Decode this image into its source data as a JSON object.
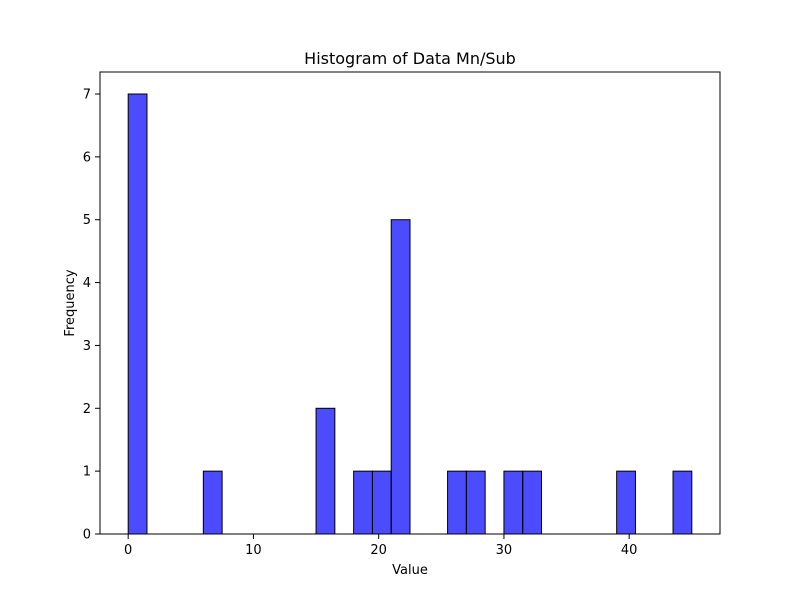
{
  "chart_data": {
    "type": "bar",
    "title": "Histogram of Data Mn/Sub",
    "xlabel": "Value",
    "ylabel": "Frequency",
    "xlim": [
      -2.25,
      47.25
    ],
    "ylim": [
      0,
      7.35
    ],
    "xticks": [
      0,
      10,
      20,
      30,
      40
    ],
    "yticks": [
      0,
      1,
      2,
      3,
      4,
      5,
      6,
      7
    ],
    "grid": false,
    "bar_color": "#0000ff",
    "bar_alpha": 0.7,
    "edge_color": "#000000",
    "bins": [
      {
        "x0": 0.0,
        "x1": 1.5,
        "count": 7
      },
      {
        "x0": 6.0,
        "x1": 7.5,
        "count": 1
      },
      {
        "x0": 15.0,
        "x1": 16.5,
        "count": 2
      },
      {
        "x0": 18.0,
        "x1": 19.5,
        "count": 1
      },
      {
        "x0": 19.5,
        "x1": 21.0,
        "count": 1
      },
      {
        "x0": 21.0,
        "x1": 22.5,
        "count": 5
      },
      {
        "x0": 25.5,
        "x1": 27.0,
        "count": 1
      },
      {
        "x0": 27.0,
        "x1": 28.5,
        "count": 1
      },
      {
        "x0": 30.0,
        "x1": 31.5,
        "count": 1
      },
      {
        "x0": 31.5,
        "x1": 33.0,
        "count": 1
      },
      {
        "x0": 39.0,
        "x1": 40.5,
        "count": 1
      },
      {
        "x0": 43.5,
        "x1": 45.0,
        "count": 1
      }
    ]
  }
}
